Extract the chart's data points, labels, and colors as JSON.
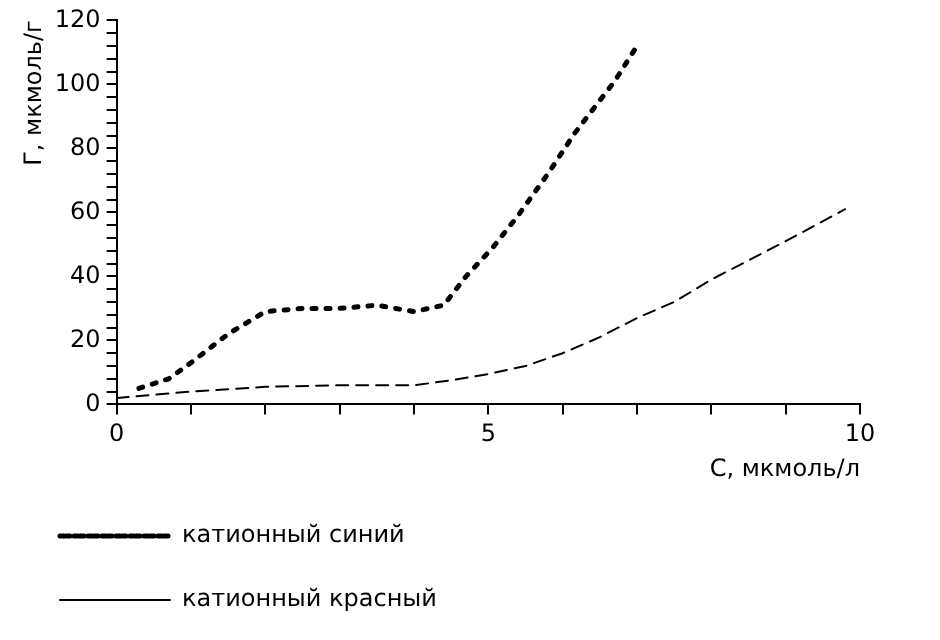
{
  "chart_data": {
    "type": "line",
    "xlabel": "C, мкмоль/л",
    "ylabel": "Г, мкмоль/г",
    "xlim": [
      0,
      10
    ],
    "ylim": [
      0,
      120
    ],
    "xticks": [
      0,
      {
        "value": 1,
        "label": null
      },
      {
        "value": 2,
        "label": null
      },
      {
        "value": 3,
        "label": null
      },
      {
        "value": 4,
        "label": null
      },
      5,
      {
        "value": 6,
        "label": null
      },
      {
        "value": 7,
        "label": null
      },
      {
        "value": 8,
        "label": null
      },
      {
        "value": 9,
        "label": null
      },
      10
    ],
    "yticks": [
      0,
      {
        "value": 4,
        "label": null
      },
      {
        "value": 8,
        "label": null
      },
      {
        "value": 12,
        "label": null
      },
      {
        "value": 16,
        "label": null
      },
      20,
      {
        "value": 24,
        "label": null
      },
      {
        "value": 28,
        "label": null
      },
      {
        "value": 32,
        "label": null
      },
      {
        "value": 36,
        "label": null
      },
      40,
      {
        "value": 44,
        "label": null
      },
      {
        "value": 48,
        "label": null
      },
      {
        "value": 52,
        "label": null
      },
      {
        "value": 56,
        "label": null
      },
      60,
      {
        "value": 64,
        "label": null
      },
      {
        "value": 68,
        "label": null
      },
      {
        "value": 72,
        "label": null
      },
      {
        "value": 76,
        "label": null
      },
      80,
      {
        "value": 84,
        "label": null
      },
      {
        "value": 88,
        "label": null
      },
      {
        "value": 92,
        "label": null
      },
      {
        "value": 96,
        "label": null
      },
      100,
      {
        "value": 104,
        "label": null
      },
      {
        "value": 108,
        "label": null
      },
      {
        "value": 112,
        "label": null
      },
      {
        "value": 116,
        "label": null
      },
      120
    ],
    "grid": false,
    "legend": "bottom",
    "marker": "none",
    "series": [
      {
        "name": "катионный синий",
        "color": "#000000",
        "line_style": "dotted",
        "x": [
          0.3,
          0.7,
          1,
          1.5,
          2,
          2.5,
          3,
          3.5,
          4,
          4.4,
          4.7,
          5.06,
          5.4,
          5.8,
          6.17,
          6.7,
          7
        ],
        "values": [
          5,
          8,
          13,
          22,
          29,
          30,
          30,
          31,
          29,
          31,
          40,
          49,
          59,
          72,
          85,
          101,
          112
        ]
      },
      {
        "name": "катионный красный",
        "color": "#000000",
        "line_style": "dashed",
        "x": [
          0,
          1,
          2,
          3,
          4,
          4.5,
          5,
          5.5,
          6,
          6.5,
          7,
          7.5,
          8,
          8.5,
          9,
          9.8
        ],
        "values": [
          2,
          4,
          5.5,
          6,
          6,
          7.5,
          9.5,
          12,
          16,
          21,
          27,
          32,
          39,
          45,
          51,
          61
        ]
      }
    ]
  }
}
